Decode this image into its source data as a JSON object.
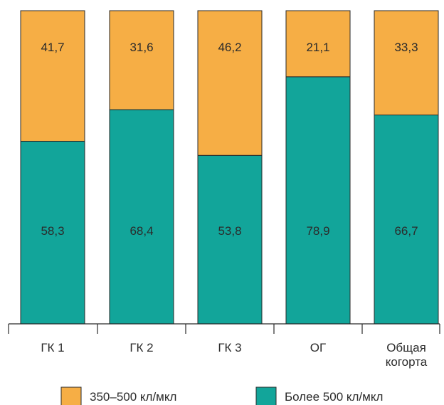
{
  "colors": {
    "series_350_500": "#F6AE45",
    "series_over_500": "#12A59A",
    "outline": "#2a2a2a",
    "axis": "#2a2a2a",
    "text": "#2b2b2b"
  },
  "chart_data": {
    "type": "bar",
    "stacked": true,
    "normalized_to": 100,
    "categories": [
      [
        "ГК 1"
      ],
      [
        "ГК 2"
      ],
      [
        "ГК 3"
      ],
      [
        "ОГ"
      ],
      [
        "Общая",
        "когорта"
      ]
    ],
    "series": [
      {
        "name": "Более 500 кл/мкл",
        "color": "#12A59A",
        "values": [
          58.3,
          68.4,
          53.8,
          78.9,
          66.7
        ],
        "labels": [
          "58,3",
          "68,4",
          "53,8",
          "78,9",
          "66,7"
        ]
      },
      {
        "name": "350–500 кл/мкл",
        "color": "#F6AE45",
        "values": [
          41.7,
          31.6,
          46.2,
          21.1,
          33.3
        ],
        "labels": [
          "41,7",
          "31,6",
          "46,2",
          "21,1",
          "33,3"
        ]
      }
    ],
    "legend": {
      "position": "bottom",
      "order": [
        "350–500 кл/мкл",
        "Более 500 кл/мкл"
      ]
    },
    "ylim": [
      0,
      100
    ]
  }
}
